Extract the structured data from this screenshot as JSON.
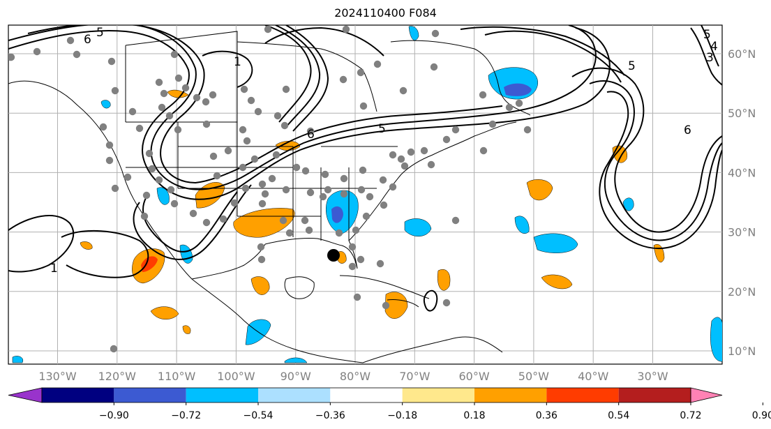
{
  "title": "2024110400 F084",
  "map": {
    "lon_labels": [
      "130°W",
      "120°W",
      "110°W",
      "100°W",
      "90°W",
      "80°W",
      "70°W",
      "60°W",
      "50°W",
      "40°W",
      "30°W"
    ],
    "lat_labels": [
      "60°N",
      "50°N",
      "40°N",
      "30°N",
      "20°N",
      "10°N"
    ],
    "contour_labels": [
      "6",
      "5",
      "1",
      "5",
      "6",
      "5",
      "1",
      "6",
      "5",
      "4",
      "3"
    ],
    "colors": {
      "station_dot": "#808080",
      "gridline": "#b0b0b0",
      "axis_label": "#808080",
      "coast": "#000000"
    }
  },
  "colorbar": {
    "ticks": [
      "−0.90",
      "−0.72",
      "−0.54",
      "−0.36",
      "−0.18",
      "0.18",
      "0.36",
      "0.54",
      "0.72",
      "0.90"
    ],
    "colors": [
      "#9933cc",
      "#000080",
      "#3c5ad2",
      "#00bfff",
      "#ace0ff",
      "#ffffff",
      "#ffe88c",
      "#ffa000",
      "#ff3c00",
      "#b41e1e",
      "#ff82b4"
    ]
  }
}
